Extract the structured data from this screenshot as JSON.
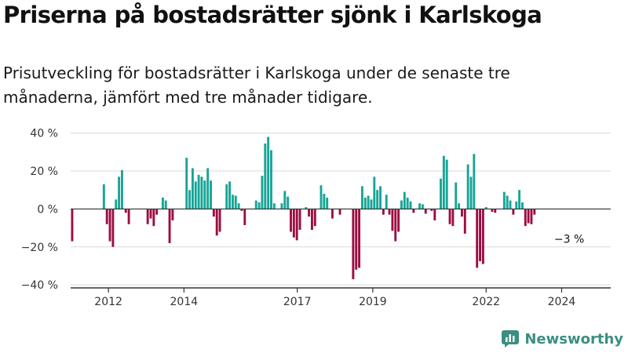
{
  "header": {
    "title": "Priserna på bostadsrätter sjönk i Karlskoga",
    "subtitle": "Prisutveckling för bostadsrätter i Karlskoga under de senaste tre månaderna, jämfört med tre månader tidigare."
  },
  "colors": {
    "positive": "#17a597",
    "negative": "#9c0d43",
    "grid": "#d9d9d9",
    "axis": "#333333"
  },
  "chart_data": {
    "type": "bar",
    "x_unit": "year",
    "y_unit": "%",
    "ylim": [
      -42,
      44
    ],
    "xlim": [
      2011.0,
      2025.3
    ],
    "grid": true,
    "y_ticks": [
      {
        "value": 40,
        "label": "40 %"
      },
      {
        "value": 20,
        "label": "20 %"
      },
      {
        "value": 0,
        "label": "0 %"
      },
      {
        "value": -20,
        "label": "−20 %"
      },
      {
        "value": -40,
        "label": "−40 %"
      }
    ],
    "x_ticks": [
      {
        "value": 2012,
        "label": "2012"
      },
      {
        "value": 2014,
        "label": "2014"
      },
      {
        "value": 2017,
        "label": "2017"
      },
      {
        "value": 2019,
        "label": "2019"
      },
      {
        "value": 2022,
        "label": "2022"
      },
      {
        "value": 2024,
        "label": "2024"
      }
    ],
    "annotation": {
      "text": "−3 %",
      "x": 2024.6,
      "value": -3
    },
    "bars": [
      [
        2011.01,
        -17
      ],
      [
        2011.85,
        13
      ],
      [
        2011.93,
        -8
      ],
      [
        2012.01,
        -17
      ],
      [
        2012.09,
        -20
      ],
      [
        2012.17,
        5
      ],
      [
        2012.25,
        17
      ],
      [
        2012.33,
        20.5
      ],
      [
        2012.43,
        -2
      ],
      [
        2012.51,
        -8
      ],
      [
        2013.01,
        -8
      ],
      [
        2013.09,
        -5
      ],
      [
        2013.17,
        -9
      ],
      [
        2013.25,
        -3
      ],
      [
        2013.41,
        6
      ],
      [
        2013.49,
        4.5
      ],
      [
        2013.59,
        -18
      ],
      [
        2013.67,
        -6
      ],
      [
        2014.04,
        27
      ],
      [
        2014.12,
        10
      ],
      [
        2014.2,
        21.5
      ],
      [
        2014.28,
        14.5
      ],
      [
        2014.36,
        18
      ],
      [
        2014.44,
        17
      ],
      [
        2014.52,
        15
      ],
      [
        2014.6,
        21.5
      ],
      [
        2014.68,
        15
      ],
      [
        2014.76,
        -4
      ],
      [
        2014.84,
        -14
      ],
      [
        2014.92,
        -12
      ],
      [
        2015.1,
        13
      ],
      [
        2015.18,
        14.5
      ],
      [
        2015.26,
        7.5
      ],
      [
        2015.34,
        7
      ],
      [
        2015.42,
        3
      ],
      [
        2015.5,
        -1
      ],
      [
        2015.58,
        -8.5
      ],
      [
        2015.88,
        4.5
      ],
      [
        2015.96,
        3.5
      ],
      [
        2016.04,
        17.5
      ],
      [
        2016.12,
        34.5
      ],
      [
        2016.2,
        38
      ],
      [
        2016.28,
        31
      ],
      [
        2016.36,
        3
      ],
      [
        2016.56,
        3
      ],
      [
        2016.64,
        9.5
      ],
      [
        2016.72,
        6.5
      ],
      [
        2016.8,
        -12
      ],
      [
        2016.88,
        -15
      ],
      [
        2016.96,
        -16.5
      ],
      [
        2017.04,
        -11
      ],
      [
        2017.2,
        1
      ],
      [
        2017.28,
        -4
      ],
      [
        2017.36,
        -11
      ],
      [
        2017.44,
        -9
      ],
      [
        2017.6,
        12.5
      ],
      [
        2017.68,
        8
      ],
      [
        2017.76,
        6
      ],
      [
        2017.9,
        -5
      ],
      [
        2018.1,
        -3
      ],
      [
        2018.45,
        -37
      ],
      [
        2018.53,
        -32
      ],
      [
        2018.61,
        -31
      ],
      [
        2018.69,
        12
      ],
      [
        2018.77,
        6
      ],
      [
        2018.85,
        7
      ],
      [
        2018.93,
        5
      ],
      [
        2019.01,
        17
      ],
      [
        2019.09,
        10
      ],
      [
        2019.17,
        12
      ],
      [
        2019.25,
        -3
      ],
      [
        2019.33,
        7.5
      ],
      [
        2019.41,
        -3
      ],
      [
        2019.49,
        -11.5
      ],
      [
        2019.57,
        -17
      ],
      [
        2019.65,
        -12
      ],
      [
        2019.73,
        4.5
      ],
      [
        2019.81,
        9
      ],
      [
        2019.89,
        6
      ],
      [
        2019.97,
        4
      ],
      [
        2020.05,
        -2
      ],
      [
        2020.21,
        3
      ],
      [
        2020.29,
        2.5
      ],
      [
        2020.37,
        -2.5
      ],
      [
        2020.53,
        -1
      ],
      [
        2020.61,
        -6
      ],
      [
        2020.77,
        16
      ],
      [
        2020.85,
        28
      ],
      [
        2020.93,
        26
      ],
      [
        2021.01,
        -8
      ],
      [
        2021.09,
        -9
      ],
      [
        2021.17,
        14
      ],
      [
        2021.25,
        3
      ],
      [
        2021.33,
        -4
      ],
      [
        2021.41,
        -13
      ],
      [
        2021.49,
        23.5
      ],
      [
        2021.57,
        17
      ],
      [
        2021.65,
        29
      ],
      [
        2021.73,
        -31
      ],
      [
        2021.81,
        -27.5
      ],
      [
        2021.89,
        -29
      ],
      [
        2021.97,
        1
      ],
      [
        2022.13,
        -1.5
      ],
      [
        2022.21,
        -2
      ],
      [
        2022.45,
        9
      ],
      [
        2022.53,
        7
      ],
      [
        2022.61,
        4.5
      ],
      [
        2022.69,
        -3
      ],
      [
        2022.77,
        4
      ],
      [
        2022.85,
        10
      ],
      [
        2022.93,
        3.5
      ],
      [
        2023.01,
        -9
      ],
      [
        2023.09,
        -7.5
      ],
      [
        2023.17,
        -8
      ],
      [
        2023.25,
        -3
      ]
    ]
  },
  "branding": {
    "name": "Newsworthy"
  }
}
